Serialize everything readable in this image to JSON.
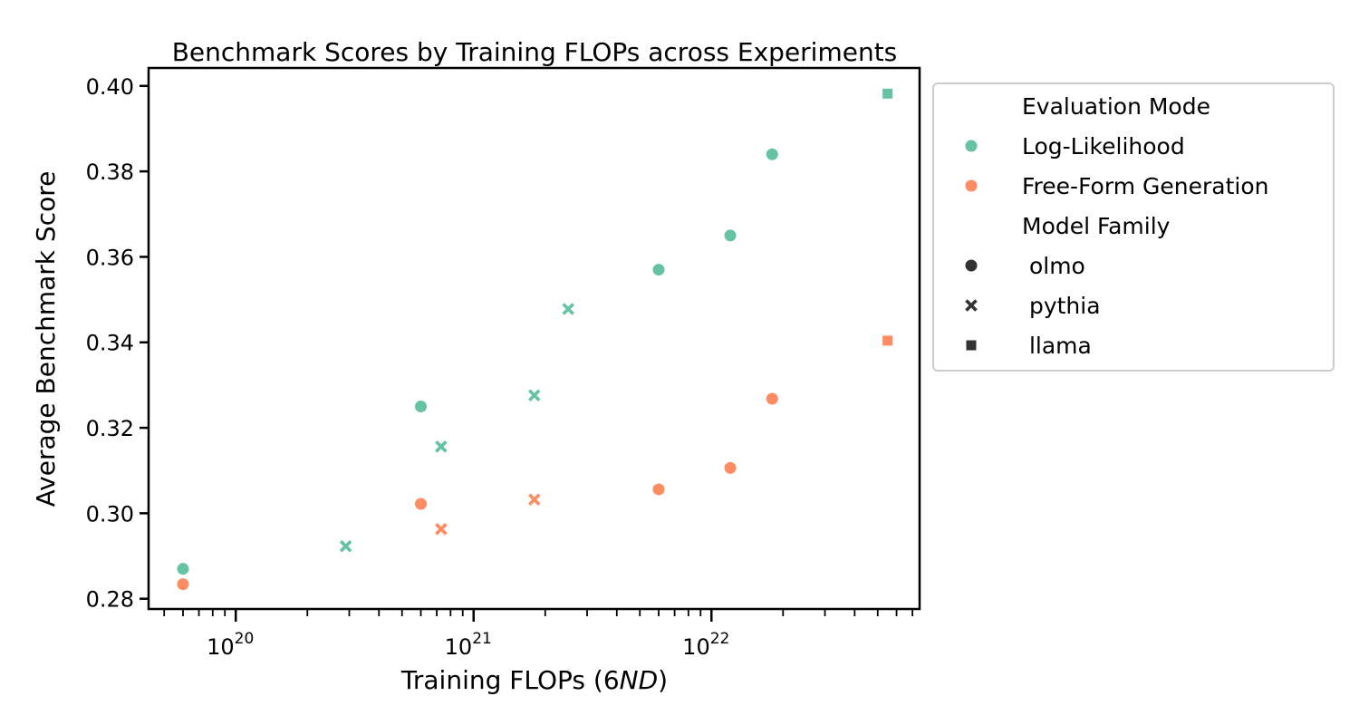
{
  "chart_data": {
    "type": "scatter",
    "title": "Benchmark Scores by Training FLOPs across Experiments",
    "xlabel": "Training FLOPs (6ND)",
    "xlabel_parts": {
      "prefix": "Training FLOPs (6",
      "italic": "ND",
      "suffix": ")"
    },
    "ylabel": "Average Benchmark Score",
    "xscale": "log",
    "xlim": [
      4.3e+19,
      7.5e+22
    ],
    "ylim": [
      0.2776,
      0.4042
    ],
    "x_ticks": [
      {
        "value": 1e+20,
        "base": "10",
        "exp": "20"
      },
      {
        "value": 1e+21,
        "base": "10",
        "exp": "21"
      },
      {
        "value": 1e+22,
        "base": "10",
        "exp": "22"
      }
    ],
    "y_ticks": [
      {
        "value": 0.28,
        "label": "0.28"
      },
      {
        "value": 0.3,
        "label": "0.30"
      },
      {
        "value": 0.32,
        "label": "0.32"
      },
      {
        "value": 0.34,
        "label": "0.34"
      },
      {
        "value": 0.36,
        "label": "0.36"
      },
      {
        "value": 0.38,
        "label": "0.38"
      },
      {
        "value": 0.4,
        "label": "0.40"
      }
    ],
    "grid": false,
    "legend_placement": "outside right, top",
    "legend": {
      "hue_title": "Evaluation Mode",
      "hue": [
        {
          "name": "Log-Likelihood",
          "color": "#66c2a5"
        },
        {
          "name": "Free-Form Generation",
          "color": "#fc8d62"
        }
      ],
      "style_title": "Model Family",
      "style": [
        {
          "name": " olmo",
          "marker": "circle"
        },
        {
          "name": " pythia",
          "marker": "x"
        },
        {
          "name": " llama",
          "marker": "square"
        }
      ]
    },
    "series": [
      {
        "name": "Log-Likelihood",
        "color": "#66c2a5",
        "points": [
          {
            "x": 6e+19,
            "y": 0.287,
            "family": "olmo"
          },
          {
            "x": 6e+20,
            "y": 0.325,
            "family": "olmo"
          },
          {
            "x": 6e+21,
            "y": 0.357,
            "family": "olmo"
          },
          {
            "x": 1.2e+22,
            "y": 0.365,
            "family": "olmo"
          },
          {
            "x": 1.8e+22,
            "y": 0.384,
            "family": "olmo"
          },
          {
            "x": 2.9e+20,
            "y": 0.2923,
            "family": "pythia"
          },
          {
            "x": 7.3e+20,
            "y": 0.3156,
            "family": "pythia"
          },
          {
            "x": 1.8e+21,
            "y": 0.3276,
            "family": "pythia"
          },
          {
            "x": 2.5e+21,
            "y": 0.3478,
            "family": "pythia"
          },
          {
            "x": 5.5e+22,
            "y": 0.3982,
            "family": "llama"
          }
        ]
      },
      {
        "name": "Free-Form Generation",
        "color": "#fc8d62",
        "points": [
          {
            "x": 6e+19,
            "y": 0.2834,
            "family": "olmo"
          },
          {
            "x": 6e+20,
            "y": 0.3022,
            "family": "olmo"
          },
          {
            "x": 6e+21,
            "y": 0.3056,
            "family": "olmo"
          },
          {
            "x": 1.2e+22,
            "y": 0.3106,
            "family": "olmo"
          },
          {
            "x": 1.8e+22,
            "y": 0.3268,
            "family": "olmo"
          },
          {
            "x": 7.3e+20,
            "y": 0.2963,
            "family": "pythia"
          },
          {
            "x": 1.8e+21,
            "y": 0.3032,
            "family": "pythia"
          },
          {
            "x": 5.5e+22,
            "y": 0.3404,
            "family": "llama"
          }
        ]
      }
    ]
  }
}
